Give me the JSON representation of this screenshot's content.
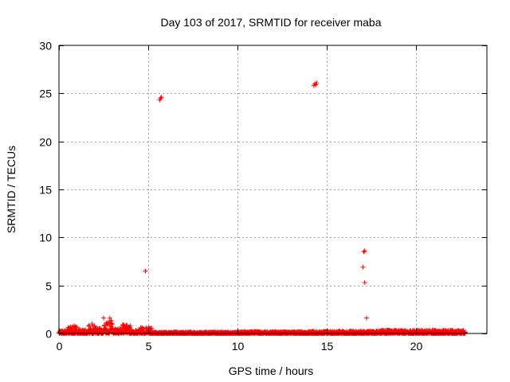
{
  "chart_data": {
    "type": "scatter",
    "title": "Day 103 of 2017, SRMTID for receiver maba",
    "xlabel": "GPS time / hours",
    "ylabel": "SRMTID / TECUs",
    "xlim": [
      0,
      24
    ],
    "ylim": [
      0,
      30
    ],
    "xticks": [
      0,
      5,
      10,
      15,
      20
    ],
    "yticks": [
      0,
      5,
      10,
      15,
      20,
      25,
      30
    ],
    "grid": true,
    "marker": "+",
    "color": "#ff0000",
    "series": [
      {
        "name": "SRMTID",
        "outliers": [
          {
            "x": 4.85,
            "y": 6.5
          },
          {
            "x": 5.65,
            "y": 24.3
          },
          {
            "x": 5.7,
            "y": 24.5
          },
          {
            "x": 5.75,
            "y": 24.6
          },
          {
            "x": 14.3,
            "y": 25.8
          },
          {
            "x": 14.35,
            "y": 26.0
          },
          {
            "x": 14.4,
            "y": 25.9
          },
          {
            "x": 14.45,
            "y": 26.1
          },
          {
            "x": 17.05,
            "y": 6.9
          },
          {
            "x": 17.1,
            "y": 8.5
          },
          {
            "x": 17.15,
            "y": 8.6
          },
          {
            "x": 17.15,
            "y": 5.3
          },
          {
            "x": 17.25,
            "y": 1.6
          }
        ],
        "baseline_segments": [
          {
            "x_start": 0.0,
            "x_end": 0.5,
            "y_min": 0.0,
            "y_max": 0.3
          },
          {
            "x_start": 0.5,
            "x_end": 1.0,
            "y_min": 0.0,
            "y_max": 0.8
          },
          {
            "x_start": 1.0,
            "x_end": 1.6,
            "y_min": 0.0,
            "y_max": 0.4
          },
          {
            "x_start": 1.6,
            "x_end": 2.0,
            "y_min": 0.0,
            "y_max": 1.1
          },
          {
            "x_start": 2.0,
            "x_end": 2.5,
            "y_min": 0.0,
            "y_max": 0.6
          },
          {
            "x_start": 2.5,
            "x_end": 3.0,
            "y_min": 0.0,
            "y_max": 1.7
          },
          {
            "x_start": 3.0,
            "x_end": 3.5,
            "y_min": 0.0,
            "y_max": 0.5
          },
          {
            "x_start": 3.5,
            "x_end": 4.0,
            "y_min": 0.0,
            "y_max": 0.9
          },
          {
            "x_start": 4.0,
            "x_end": 4.5,
            "y_min": 0.0,
            "y_max": 0.4
          },
          {
            "x_start": 4.5,
            "x_end": 5.2,
            "y_min": 0.0,
            "y_max": 0.7
          },
          {
            "x_start": 5.2,
            "x_end": 10.0,
            "y_min": 0.0,
            "y_max": 0.15
          },
          {
            "x_start": 10.0,
            "x_end": 14.0,
            "y_min": 0.0,
            "y_max": 0.2
          },
          {
            "x_start": 14.0,
            "x_end": 18.0,
            "y_min": 0.0,
            "y_max": 0.25
          },
          {
            "x_start": 18.0,
            "x_end": 22.8,
            "y_min": 0.0,
            "y_max": 0.35
          }
        ]
      }
    ]
  }
}
